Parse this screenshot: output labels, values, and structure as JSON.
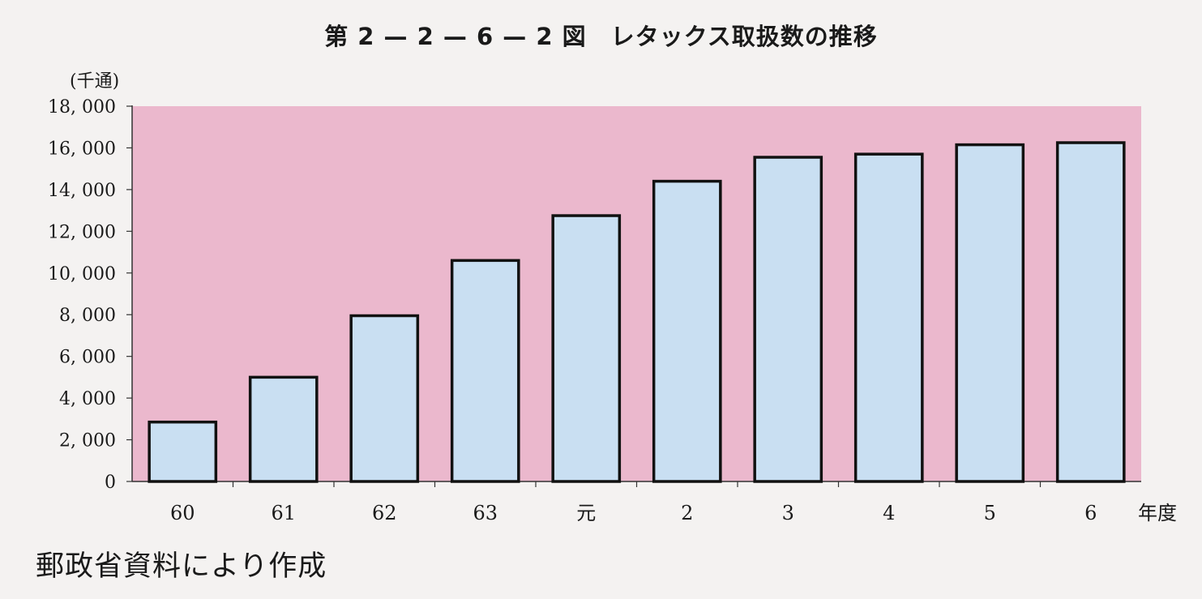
{
  "title": "第 2 — 2 — 6 — 2 図　レタックス取扱数の推移",
  "source": "郵政省資料により作成",
  "chart_data": {
    "type": "bar",
    "title": "第 2 — 2 — 6 — 2 図　レタックス取扱数の推移",
    "ylabel": "(千通)",
    "xlabel": "年度",
    "categories": [
      "60",
      "61",
      "62",
      "63",
      "元",
      "2",
      "3",
      "4",
      "5",
      "6"
    ],
    "values": [
      2850,
      5000,
      7950,
      10600,
      12750,
      14400,
      15550,
      15700,
      16150,
      16250
    ],
    "ylim": [
      0,
      18000
    ],
    "yticks": [
      0,
      2000,
      4000,
      6000,
      8000,
      10000,
      12000,
      14000,
      16000,
      18000
    ],
    "ytick_labels": [
      "0",
      "2, 000",
      "4, 000",
      "6, 000",
      "8, 000",
      "10, 000",
      "12, 000",
      "14, 000",
      "16, 000",
      "18, 000"
    ],
    "plot_background": "#ebb8cd",
    "bar_color": "#c9dff2",
    "bar_edge_color": "#111111",
    "grid": false
  }
}
